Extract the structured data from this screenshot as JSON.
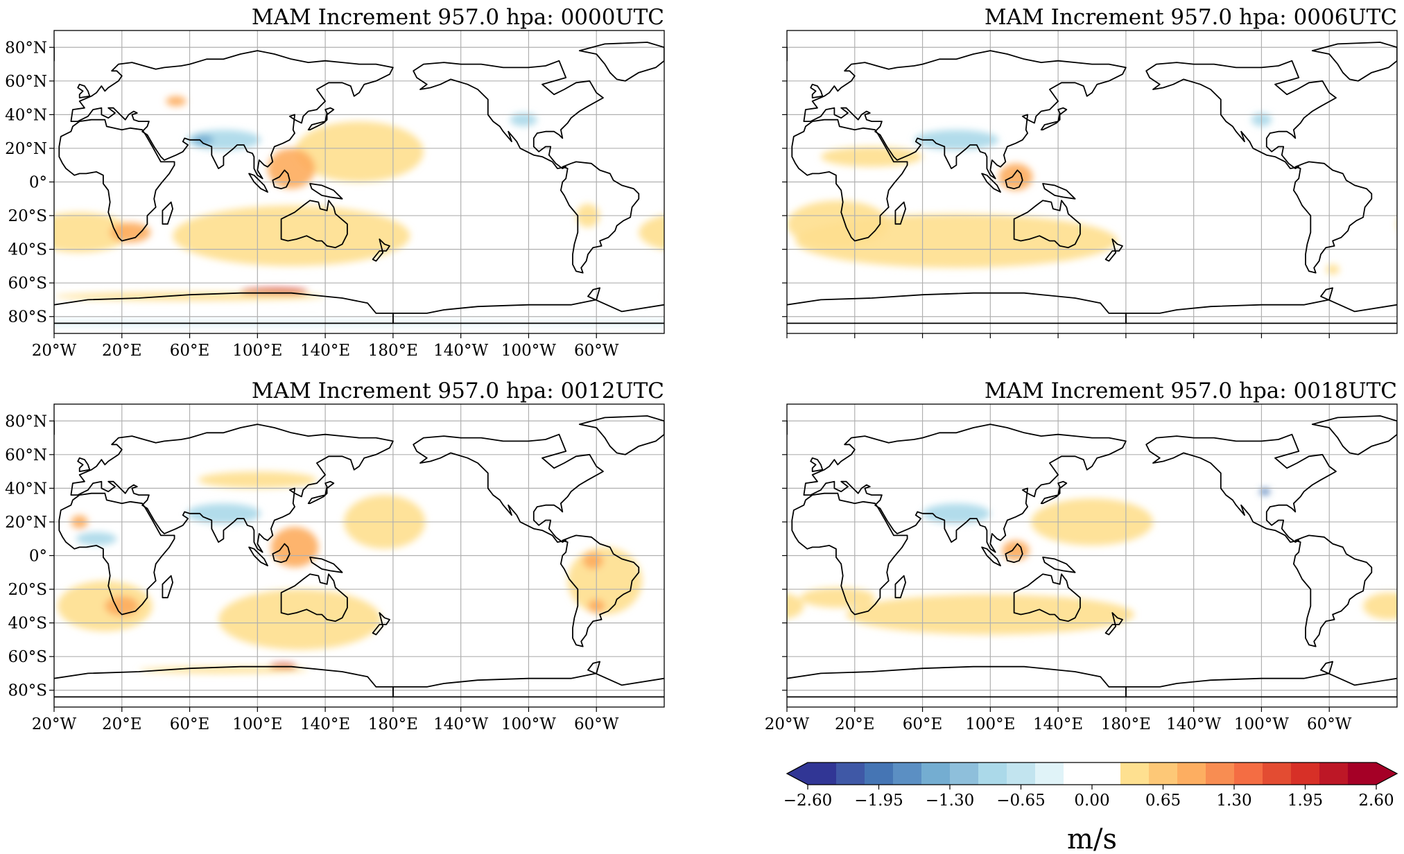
{
  "panels": [
    {
      "title": "MAM Increment 957.0 hpa:  0000UTC",
      "show_lon_labels": true,
      "show_lat_labels": true,
      "blobs": [
        {
          "c": "#fee090",
          "lon": -5,
          "lat": -30,
          "rx": 30,
          "ry": 12
        },
        {
          "c": "#fee090",
          "lon": 120,
          "lat": -32,
          "rx": 70,
          "ry": 18
        },
        {
          "c": "#fee090",
          "lon": 160,
          "lat": 18,
          "rx": 38,
          "ry": 18
        },
        {
          "c": "#fdae61",
          "lon": 120,
          "lat": 8,
          "rx": 14,
          "ry": 12
        },
        {
          "c": "#fdae61",
          "lon": 25,
          "lat": -30,
          "rx": 12,
          "ry": 6
        },
        {
          "c": "#d73027",
          "lon": 110,
          "lat": -65,
          "rx": 20,
          "ry": 2
        },
        {
          "c": "#fee090",
          "lon": 60,
          "lat": -68,
          "rx": 80,
          "ry": 2.5
        },
        {
          "c": "#e0f3f8",
          "lon": 75,
          "lat": -84,
          "rx": 200,
          "ry": 2
        },
        {
          "c": "#abd9e9",
          "lon": 80,
          "lat": 25,
          "rx": 22,
          "ry": 6
        },
        {
          "c": "#74add1",
          "lon": 68,
          "lat": 25,
          "rx": 6,
          "ry": 3
        },
        {
          "c": "#abd9e9",
          "lon": -103,
          "lat": 37,
          "rx": 8,
          "ry": 4
        },
        {
          "c": "#fdae61",
          "lon": 52,
          "lat": 48,
          "rx": 6,
          "ry": 3
        },
        {
          "c": "#fee090",
          "lon": -65,
          "lat": -20,
          "rx": 7,
          "ry": 7
        }
      ]
    },
    {
      "title": "MAM Increment 957.0 hpa:  0006UTC",
      "show_lon_labels": false,
      "show_lat_labels": false,
      "blobs": [
        {
          "c": "#fee090",
          "lon": 80,
          "lat": -35,
          "rx": 95,
          "ry": 16
        },
        {
          "c": "#fee090",
          "lon": 10,
          "lat": -25,
          "rx": 30,
          "ry": 14
        },
        {
          "c": "#fee090",
          "lon": 30,
          "lat": 15,
          "rx": 30,
          "ry": 6
        },
        {
          "c": "#fdae61",
          "lon": 115,
          "lat": 3,
          "rx": 10,
          "ry": 8
        },
        {
          "c": "#abd9e9",
          "lon": 80,
          "lat": 25,
          "rx": 25,
          "ry": 6
        },
        {
          "c": "#abd9e9",
          "lon": -100,
          "lat": 37,
          "rx": 6,
          "ry": 4
        },
        {
          "c": "#fee090",
          "lon": -58,
          "lat": -52,
          "rx": 4,
          "ry": 3
        }
      ]
    },
    {
      "title": "MAM Increment 957.0 hpa:  0012UTC",
      "show_lon_labels": true,
      "show_lat_labels": true,
      "blobs": [
        {
          "c": "#fee090",
          "lon": 10,
          "lat": -30,
          "rx": 28,
          "ry": 15
        },
        {
          "c": "#fdae61",
          "lon": 20,
          "lat": -30,
          "rx": 10,
          "ry": 6
        },
        {
          "c": "#fee090",
          "lon": 125,
          "lat": -38,
          "rx": 48,
          "ry": 18
        },
        {
          "c": "#fee090",
          "lon": 175,
          "lat": 20,
          "rx": 24,
          "ry": 16
        },
        {
          "c": "#fdae61",
          "lon": 122,
          "lat": 5,
          "rx": 14,
          "ry": 12
        },
        {
          "c": "#fee090",
          "lon": -55,
          "lat": -15,
          "rx": 22,
          "ry": 20
        },
        {
          "c": "#fdae61",
          "lon": -62,
          "lat": -3,
          "rx": 6,
          "ry": 5
        },
        {
          "c": "#fdae61",
          "lon": -60,
          "lat": -30,
          "rx": 5,
          "ry": 4
        },
        {
          "c": "#fdae61",
          "lon": -5,
          "lat": 20,
          "rx": 5,
          "ry": 4
        },
        {
          "c": "#d73027",
          "lon": 115,
          "lat": -66,
          "rx": 8,
          "ry": 2
        },
        {
          "c": "#fee090",
          "lon": 80,
          "lat": -68,
          "rx": 50,
          "ry": 2
        },
        {
          "c": "#fee090",
          "lon": 100,
          "lat": 45,
          "rx": 35,
          "ry": 5
        },
        {
          "c": "#abd9e9",
          "lon": 80,
          "lat": 25,
          "rx": 22,
          "ry": 6
        },
        {
          "c": "#abd9e9",
          "lon": 5,
          "lat": 10,
          "rx": 12,
          "ry": 4
        }
      ]
    },
    {
      "title": "MAM Increment 957.0 hpa:  0018UTC",
      "show_lon_labels": true,
      "show_lat_labels": false,
      "blobs": [
        {
          "c": "#fee090",
          "lon": 100,
          "lat": -35,
          "rx": 85,
          "ry": 12
        },
        {
          "c": "#fee090",
          "lon": 160,
          "lat": 20,
          "rx": 36,
          "ry": 14
        },
        {
          "c": "#fee090",
          "lon": 10,
          "lat": -25,
          "rx": 22,
          "ry": 6
        },
        {
          "c": "#fee090",
          "lon": -25,
          "lat": -30,
          "rx": 15,
          "ry": 8
        },
        {
          "c": "#fdae61",
          "lon": 115,
          "lat": 3,
          "rx": 8,
          "ry": 6
        },
        {
          "c": "#abd9e9",
          "lon": 80,
          "lat": 25,
          "rx": 20,
          "ry": 6
        },
        {
          "c": "#4575b4",
          "lon": -98,
          "lat": 38,
          "rx": 3,
          "ry": 2
        }
      ]
    }
  ],
  "lat_ticks": [
    80,
    60,
    40,
    20,
    0,
    -20,
    -40,
    -60,
    -80
  ],
  "lat_labels": [
    "80°N",
    "60°N",
    "40°N",
    "20°N",
    "0°",
    "20°S",
    "40°S",
    "60°S",
    "80°S"
  ],
  "lon_ticks": [
    20,
    60,
    100,
    140,
    180,
    220,
    260,
    300,
    340
  ],
  "lon_labels": [
    "20°E",
    "60°E",
    "100°E",
    "140°E",
    "180°E",
    "140°W",
    "100°W",
    "60°W",
    "20°W"
  ],
  "colorbar": {
    "min": -2.6,
    "max": 2.6,
    "colors": [
      "#313695",
      "#3f58a6",
      "#4575b4",
      "#5b8fc3",
      "#74add1",
      "#8ebfdb",
      "#abd9e9",
      "#c2e4ef",
      "#e0f3f8",
      "#ffffff",
      "#ffffff",
      "#fee090",
      "#fdc877",
      "#fdae61",
      "#f88d52",
      "#f46d43",
      "#e34c32",
      "#d73027",
      "#bd1726",
      "#a50026"
    ],
    "ticks": [
      -2.6,
      -1.95,
      -1.3,
      -0.65,
      0.0,
      0.65,
      1.3,
      1.95,
      2.6
    ],
    "tick_labels": [
      "−2.60",
      "−1.95",
      "−1.30",
      "−0.65",
      "0.00",
      "0.65",
      "1.30",
      "1.95",
      "2.60"
    ],
    "unit": "m/s"
  }
}
